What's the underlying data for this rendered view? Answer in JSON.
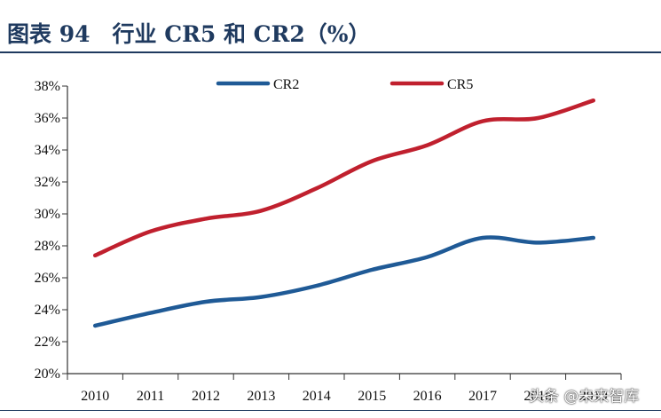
{
  "header": {
    "title": "图表 94　行业 CR5 和 CR2（%）"
  },
  "watermark": "头条 @未来智库",
  "colors": {
    "CR2": "#1f5a96",
    "CR5": "#c0202e",
    "axis": "#333333",
    "title": "#1f3a5f"
  },
  "chart_data": {
    "type": "line",
    "title": "图表 94　行业 CR5 和 CR2（%）",
    "xlabel": "",
    "ylabel": "",
    "ylim": [
      20,
      38
    ],
    "yticks": [
      "20%",
      "22%",
      "24%",
      "26%",
      "28%",
      "30%",
      "32%",
      "34%",
      "36%",
      "38%"
    ],
    "categories": [
      "2010",
      "2011",
      "2012",
      "2013",
      "2014",
      "2015",
      "2016",
      "2017",
      "2018",
      "2019"
    ],
    "grid": false,
    "legend": "top",
    "series": [
      {
        "name": "CR2",
        "values": [
          23.0,
          23.8,
          24.5,
          24.8,
          25.5,
          26.5,
          27.3,
          28.5,
          28.2,
          28.5
        ]
      },
      {
        "name": "CR5",
        "values": [
          27.4,
          28.9,
          29.7,
          30.2,
          31.6,
          33.3,
          34.3,
          35.8,
          36.0,
          37.1
        ]
      }
    ]
  }
}
